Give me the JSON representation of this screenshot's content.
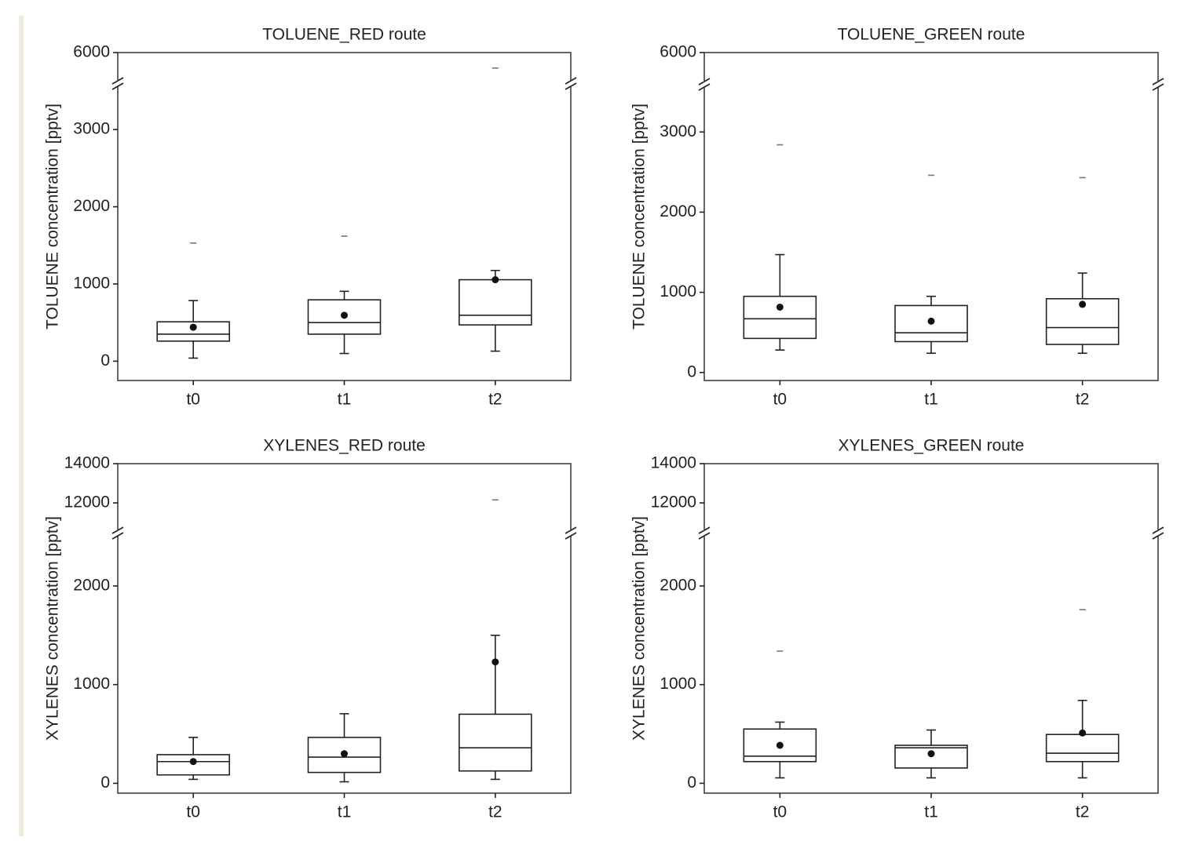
{
  "chart_data": [
    {
      "type": "box",
      "title": "TOLUENE_RED route",
      "ylabel": "TOLUENE concentration [pptv]",
      "categories": [
        "t0",
        "t1",
        "t2"
      ],
      "whisker_low": [
        40,
        100,
        130
      ],
      "q1": [
        260,
        350,
        470
      ],
      "median": [
        350,
        500,
        595
      ],
      "q3": [
        510,
        795,
        1055
      ],
      "whisker_high": [
        785,
        905,
        1175
      ],
      "mean": [
        440,
        595,
        1055
      ],
      "outliers": [
        [
          1530
        ],
        [
          1620
        ],
        [
          5780
        ]
      ],
      "ylim": [
        -250,
        6000
      ],
      "ybreak": [
        3550,
        5600
      ],
      "yticks": [
        0,
        1000,
        2000,
        3000,
        6000
      ]
    },
    {
      "type": "box",
      "title": "TOLUENE_GREEN route",
      "ylabel": "TOLUENE concentration [pptv]",
      "categories": [
        "t0",
        "t1",
        "t2"
      ],
      "whisker_low": [
        280,
        240,
        240
      ],
      "q1": [
        425,
        385,
        350
      ],
      "median": [
        670,
        495,
        560
      ],
      "q3": [
        950,
        835,
        920
      ],
      "whisker_high": [
        1470,
        950,
        1240
      ],
      "mean": [
        815,
        640,
        850
      ],
      "outliers": [
        [
          2840
        ],
        [
          2460
        ],
        [
          2430
        ]
      ],
      "ylim": [
        -100,
        6000
      ],
      "ybreak": [
        3550,
        5600
      ],
      "yticks": [
        0,
        1000,
        2000,
        3000,
        6000
      ]
    },
    {
      "type": "box",
      "title": "XYLENES_RED route",
      "ylabel": "XYLENES concentration [pptv]",
      "categories": [
        "t0",
        "t1",
        "t2"
      ],
      "whisker_low": [
        40,
        15,
        40
      ],
      "q1": [
        85,
        110,
        125
      ],
      "median": [
        220,
        265,
        360
      ],
      "q3": [
        290,
        465,
        700
      ],
      "whisker_high": [
        465,
        705,
        1500
      ],
      "mean": [
        220,
        300,
        1230
      ],
      "outliers": [
        [],
        [],
        [
          12150
        ]
      ],
      "ylim": [
        -100,
        14000
      ],
      "ybreak": [
        2500,
        10600
      ],
      "yticks": [
        0,
        1000,
        2000,
        12000,
        14000
      ]
    },
    {
      "type": "box",
      "title": "XYLENES_GREEN route",
      "ylabel": "XYLENES concentration [pptv]",
      "categories": [
        "t0",
        "t1",
        "t2"
      ],
      "whisker_low": [
        55,
        55,
        55
      ],
      "q1": [
        220,
        155,
        220
      ],
      "median": [
        275,
        360,
        305
      ],
      "q3": [
        550,
        385,
        495
      ],
      "whisker_high": [
        620,
        540,
        840
      ],
      "mean": [
        385,
        300,
        510
      ],
      "outliers": [
        [
          1340
        ],
        [],
        [
          1760
        ]
      ],
      "ylim": [
        -100,
        14000
      ],
      "ybreak": [
        2500,
        10600
      ],
      "yticks": [
        0,
        1000,
        2000,
        12000,
        14000
      ]
    }
  ]
}
